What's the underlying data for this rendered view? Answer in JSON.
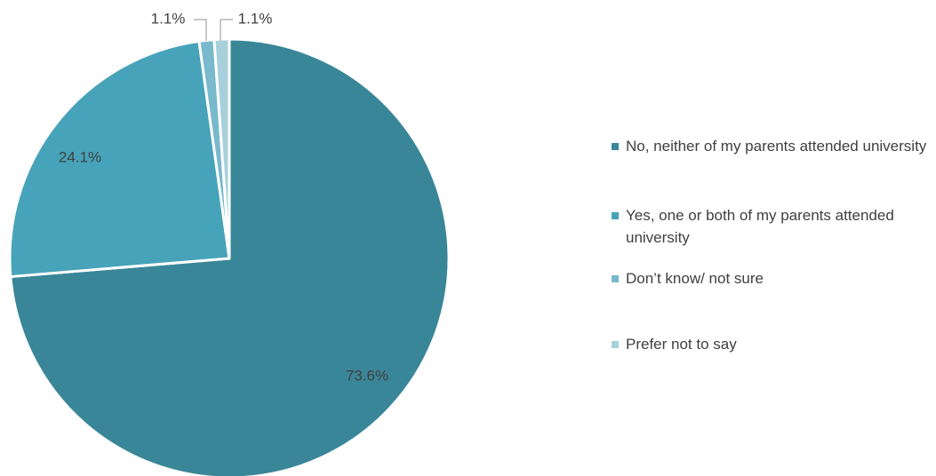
{
  "chart_data": {
    "type": "pie",
    "title": "",
    "slices": [
      {
        "label": "No, neither of my parents attended university",
        "value": 73.6,
        "value_label": "73.6%",
        "color": "#3a8699"
      },
      {
        "label": "Yes, one or both of my parents attended university",
        "value": 24.1,
        "value_label": "24.1%",
        "color": "#47a3b9"
      },
      {
        "label": "Don’t know/ not sure",
        "value": 1.1,
        "value_label": "1.1%",
        "color": "#78b9cc"
      },
      {
        "label": "Prefer not to say",
        "value": 1.1,
        "value_label": "1.1%",
        "color": "#a8d0dc"
      }
    ],
    "legend_position": "right",
    "start_angle": "12 o'clock",
    "direction": "clockwise"
  }
}
